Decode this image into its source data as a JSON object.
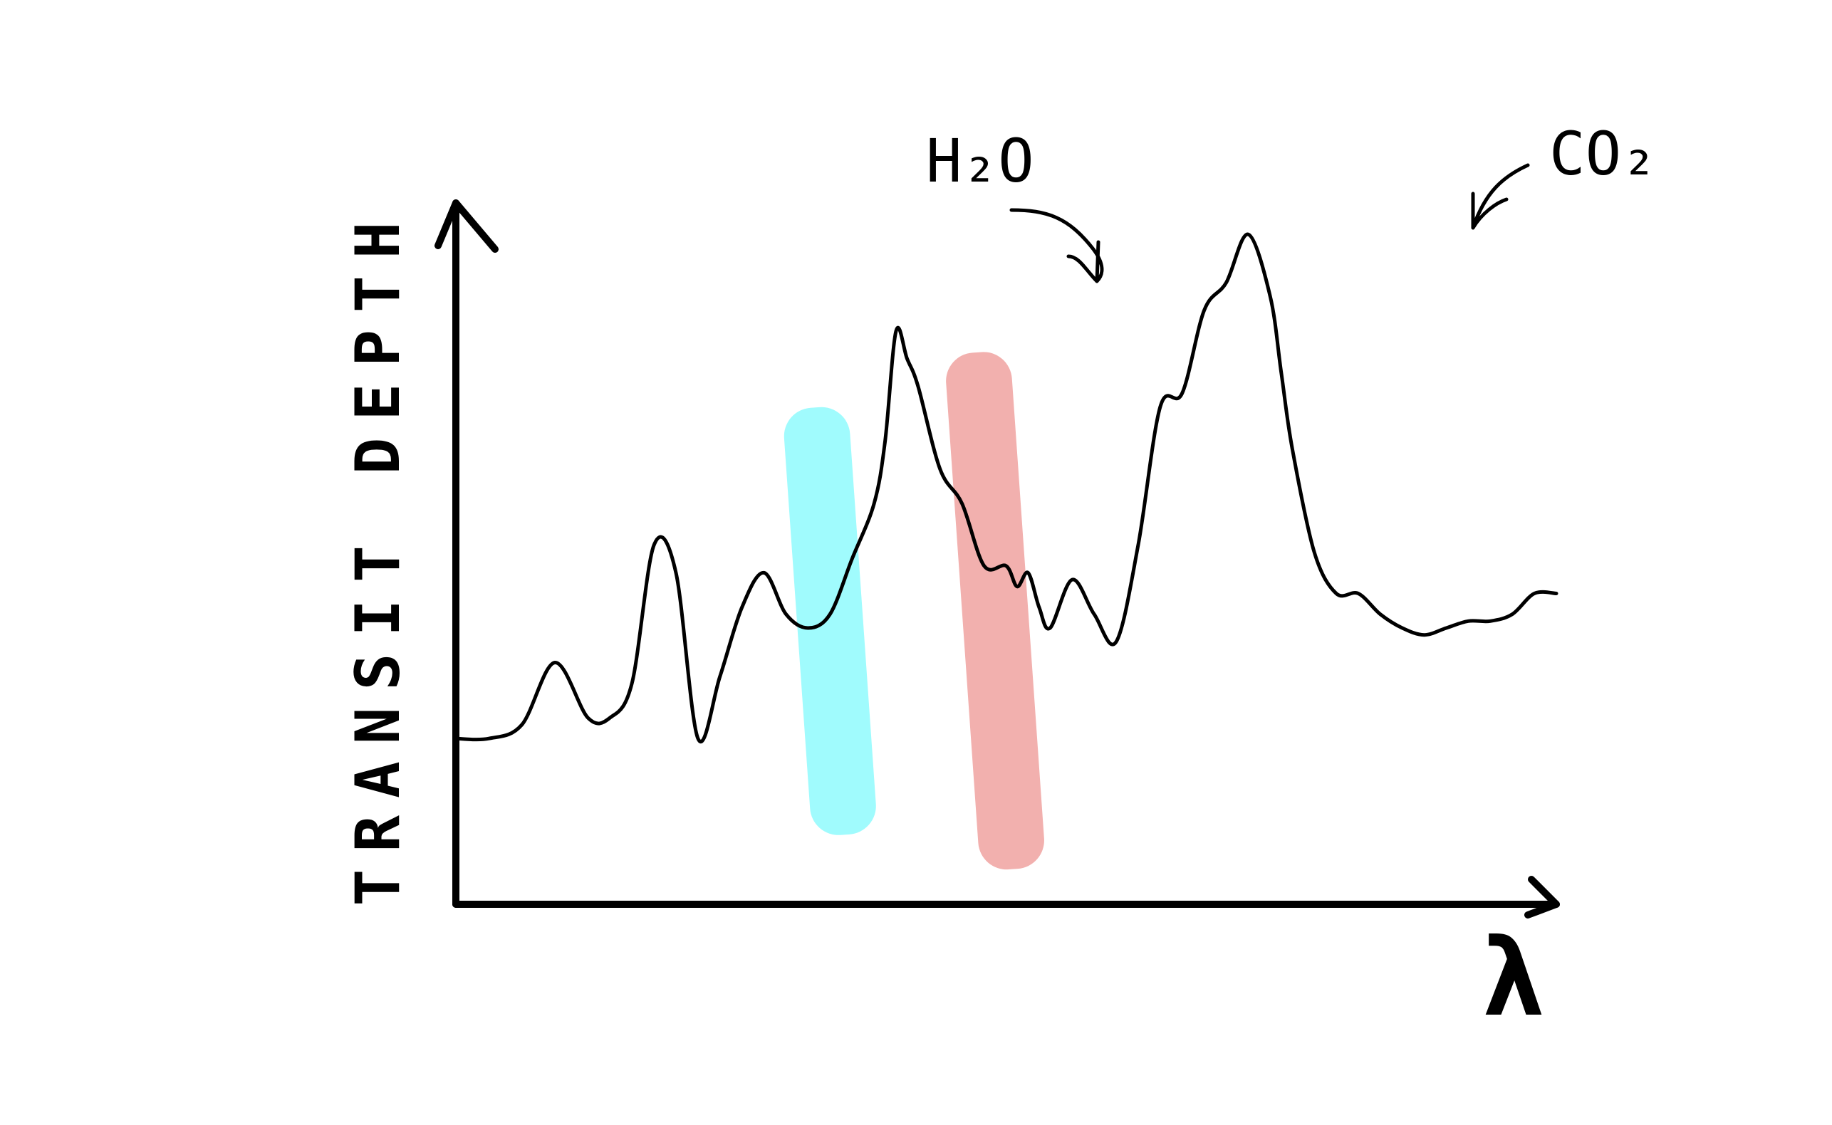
{
  "chart_data": {
    "type": "line",
    "title": "",
    "xlabel": "λ",
    "ylabel": "TRANSIT DEPTH",
    "x_ticks_shown": false,
    "y_ticks_shown": false,
    "grid": false,
    "legend": "none",
    "xlim": [
      0,
      100
    ],
    "ylim": [
      0,
      100
    ],
    "series": [
      {
        "x": [
          0,
          3,
          6,
          9,
          12,
          14,
          16,
          18,
          20,
          22,
          24,
          26,
          28,
          30,
          32,
          34,
          36,
          38,
          39,
          40,
          41,
          42,
          44,
          46,
          48,
          50,
          51,
          52,
          53,
          54,
          56,
          58,
          60,
          62,
          64,
          66,
          68,
          70,
          72,
          74,
          75,
          76,
          78,
          80,
          82,
          84,
          86,
          88,
          90,
          92,
          94,
          96,
          98,
          100
        ],
        "values": [
          24,
          24,
          26,
          35,
          27,
          27,
          32,
          52,
          48,
          24,
          33,
          43,
          48,
          42,
          40,
          42,
          50,
          58,
          67,
          83,
          79,
          75,
          63,
          58,
          49,
          49,
          46,
          48,
          43,
          40,
          47,
          42,
          38,
          52,
          72,
          74,
          86,
          90,
          97,
          88,
          77,
          66,
          51,
          45,
          45,
          42,
          40,
          39,
          40,
          41,
          41,
          42,
          45,
          45
        ]
      }
    ],
    "bands": [
      {
        "label": "H₂O",
        "color": "#a0fbfd",
        "x_start": 31,
        "x_end": 37
      },
      {
        "label": "CO₂",
        "color": "#f2b0ae",
        "x_start": 46,
        "x_end": 52
      }
    ]
  },
  "colors": {
    "h2o_band": "#a0fbfd",
    "co2_band": "#f2b0ae",
    "ink": "#000000"
  }
}
